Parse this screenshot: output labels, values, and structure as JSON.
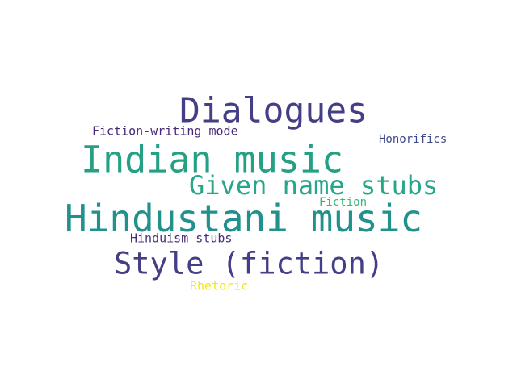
{
  "words": [
    {
      "text": "Dialogues",
      "color": "#433e85"
    },
    {
      "text": "Indian music",
      "color": "#25a085"
    },
    {
      "text": "Given name stubs",
      "color": "#27a689"
    },
    {
      "text": "Hindustani music",
      "color": "#21918c"
    },
    {
      "text": "Style (fiction)",
      "color": "#433e85"
    },
    {
      "text": "Fiction-writing mode",
      "color": "#482878"
    },
    {
      "text": "Honorifics",
      "color": "#3e4989"
    },
    {
      "text": "Fiction",
      "color": "#35b779"
    },
    {
      "text": "Hinduism stubs",
      "color": "#472d7b"
    },
    {
      "text": "Rhetoric",
      "color": "#f1e51d"
    }
  ]
}
